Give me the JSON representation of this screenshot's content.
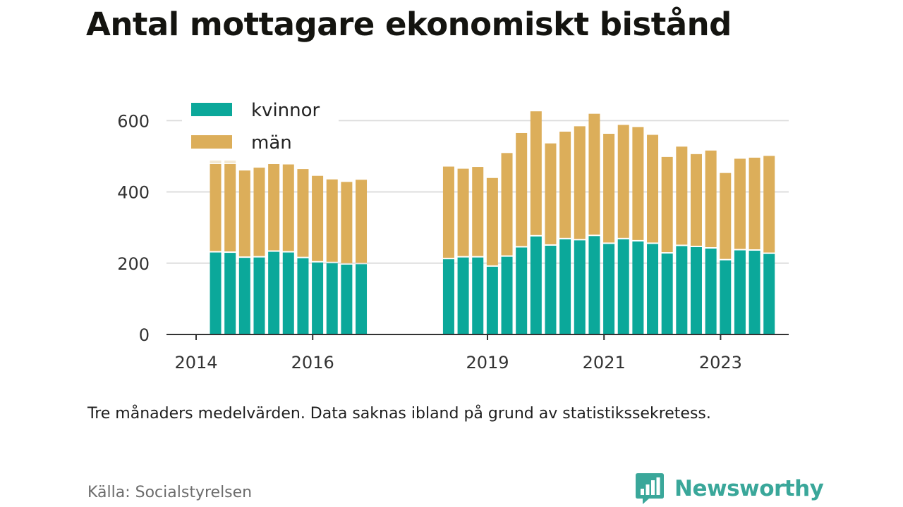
{
  "title": "Antal mottagare ekonomiskt bistånd",
  "note": "Tre månaders medelvärden. Data saknas ibland på grund av statistikssekretess.",
  "source": "Källa: Socialstyrelsen",
  "brand": {
    "name": "Newsworthy",
    "icon": "newsworthy-chat-bar-icon",
    "color": "#3aa79a"
  },
  "chart_data": {
    "type": "bar",
    "stacked": true,
    "title": "Antal mottagare ekonomiskt bistånd",
    "xlabel": "",
    "ylabel": "",
    "ylim": [
      0,
      640
    ],
    "yticks": [
      0,
      200,
      400,
      600
    ],
    "xticks": [
      "2014",
      "2016",
      "2019",
      "2021",
      "2023"
    ],
    "grid": true,
    "legend_position": "top-left",
    "colors": {
      "kvinnor": "#0ba89a",
      "män": "#dcae5a",
      "faded": "#f3e8d2"
    },
    "x": [
      "2014-05",
      "2014-08",
      "2014-11",
      "2015-02",
      "2015-05",
      "2015-08",
      "2015-11",
      "2016-02",
      "2016-05",
      "2016-08",
      "2016-11",
      "2018-05",
      "2018-08",
      "2018-11",
      "2019-02",
      "2019-05",
      "2019-08",
      "2019-11",
      "2020-02",
      "2020-05",
      "2020-08",
      "2020-11",
      "2021-02",
      "2021-05",
      "2021-08",
      "2021-11",
      "2022-02",
      "2022-05",
      "2022-08",
      "2022-11",
      "2023-02",
      "2023-05",
      "2023-08",
      "2023-11"
    ],
    "series": [
      {
        "name": "kvinnor",
        "values": [
          230,
          229,
          215,
          216,
          232,
          230,
          214,
          202,
          200,
          196,
          197,
          211,
          216,
          216,
          190,
          218,
          244,
          275,
          249,
          267,
          264,
          276,
          254,
          267,
          261,
          254,
          227,
          248,
          245,
          241,
          208,
          236,
          235,
          226
        ]
      },
      {
        "name": "män",
        "values": [
          248,
          249,
          245,
          252,
          246,
          247,
          250,
          243,
          235,
          232,
          237,
          260,
          249,
          254,
          249,
          291,
          321,
          351,
          287,
          302,
          320,
          343,
          309,
          321,
          321,
          306,
          271,
          279,
          261,
          275,
          245,
          257,
          261,
          275
        ]
      }
    ],
    "faded_extra": [
      12,
      10,
      0,
      0,
      0,
      0,
      0,
      0,
      0,
      0,
      0,
      0,
      0,
      0,
      0,
      0,
      0,
      0,
      0,
      0,
      0,
      0,
      0,
      0,
      0,
      0,
      0,
      0,
      0,
      0,
      0,
      0,
      0,
      0
    ]
  }
}
